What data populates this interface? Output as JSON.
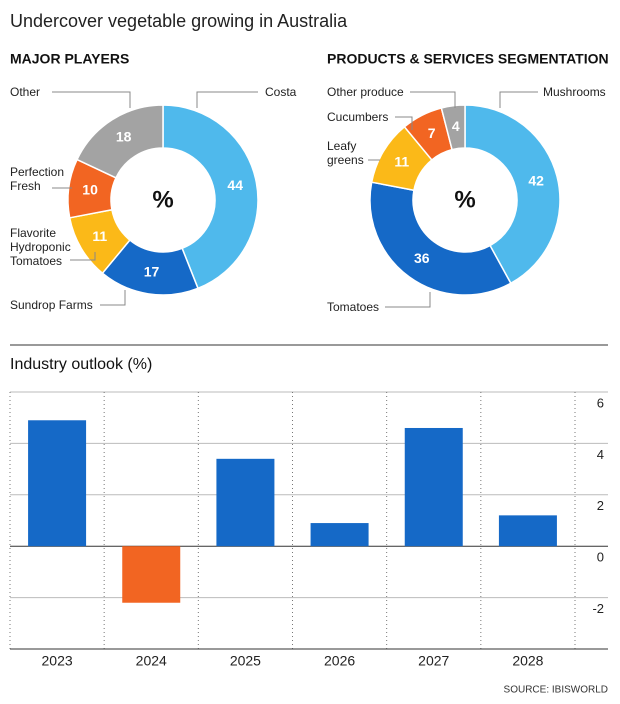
{
  "title": "Undercover vegetable growing in Australia",
  "source": "SOURCE: IBISWORLD",
  "chart_data": [
    {
      "type": "donut",
      "title": "MAJOR PLAYERS",
      "center_label": "%",
      "categories": [
        "Costa",
        "Sundrop Farms",
        "Flavorite\nHydroponic\nTomatoes",
        "Perfection\nFresh",
        "Other"
      ],
      "values": [
        44,
        17,
        11,
        10,
        18
      ],
      "colors": [
        "#4fb9ec",
        "#1569c7",
        "#fbb918",
        "#f26522",
        "#a3a3a3"
      ]
    },
    {
      "type": "donut",
      "title": "PRODUCTS & SERVICES SEGMENTATION",
      "center_label": "%",
      "categories": [
        "Mushrooms",
        "Tomatoes",
        "Leafy\ngreens",
        "Cucumbers",
        "Other produce"
      ],
      "values": [
        42,
        36,
        11,
        7,
        4
      ],
      "colors": [
        "#4fb9ec",
        "#1569c7",
        "#fbb918",
        "#f26522",
        "#a3a3a3"
      ]
    },
    {
      "type": "bar",
      "title": "Industry outlook (%)",
      "categories": [
        "2023",
        "2024",
        "2025",
        "2026",
        "2027",
        "2028"
      ],
      "values": [
        4.9,
        -2.2,
        3.4,
        0.9,
        4.6,
        1.2
      ],
      "color": "#1569c7",
      "negative_color": "#f26522",
      "ylim": [
        -4,
        6
      ],
      "yticks": [
        -2,
        0,
        2,
        4,
        6
      ],
      "grid": true
    }
  ]
}
